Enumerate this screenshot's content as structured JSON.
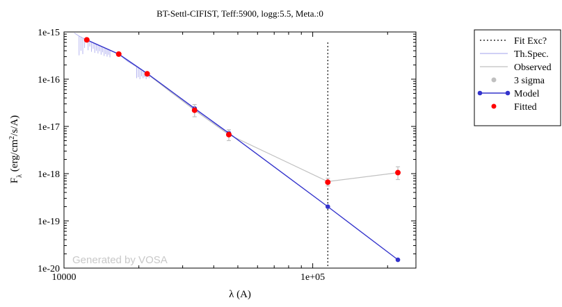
{
  "chart_data": {
    "type": "line",
    "title": "BT-Settl-CIFIST, Teff:5900, logg:5.5, Meta.:0",
    "xlabel": "λ (A)",
    "ylabel": "F_λ (erg/cm^2/s/A)",
    "xscale": "log",
    "yscale": "log",
    "xlim": [
      10000,
      260000
    ],
    "ylim": [
      1e-20,
      1e-15
    ],
    "x_tick_labels": [
      "10000",
      "1e+05"
    ],
    "y_tick_labels": [
      "1e-15",
      "1e-16",
      "1e-17",
      "1e-18",
      "1e-19",
      "1e-20"
    ],
    "watermark": "Generated by VOSA",
    "fit_exclusion_x": 115000,
    "series": [
      {
        "name": "Model",
        "color": "#3333cc",
        "points": [
          [
            12350,
            6.8e-16
          ],
          [
            16600,
            3.4e-16
          ],
          [
            21600,
            1.32e-16
          ],
          [
            33500,
            2.4e-17
          ],
          [
            46000,
            7.2e-18
          ],
          [
            115000,
            2e-19
          ],
          [
            220000,
            1.5e-20
          ]
        ]
      },
      {
        "name": "Observed",
        "color": "#c0c0c0",
        "points": [
          [
            12350,
            6.8e-16
          ],
          [
            16600,
            3.4e-16
          ],
          [
            21600,
            1.3e-16
          ],
          [
            33500,
            2.2e-17
          ],
          [
            46000,
            6.7e-18
          ],
          [
            115000,
            6.8e-19
          ],
          [
            220000,
            1.05e-18
          ]
        ]
      },
      {
        "name": "Fitted",
        "color": "#ff0000",
        "points": [
          [
            12350,
            6.8e-16
          ],
          [
            16600,
            3.4e-16
          ],
          [
            21600,
            1.3e-16
          ],
          [
            33500,
            2.2e-17
          ],
          [
            46000,
            6.7e-18
          ],
          [
            115000,
            6.6e-19
          ],
          [
            220000,
            1.05e-18
          ]
        ],
        "error_low": [
          6.3e-16,
          3.15e-16,
          1.2e-16,
          1.6e-17,
          5e-18,
          5.5e-19,
          7.5e-19
        ],
        "error_high": [
          7.3e-16,
          3.65e-16,
          1.4e-16,
          2.9e-17,
          8.5e-18,
          8e-19,
          1.4e-18
        ]
      },
      {
        "name": "Th.Spec.",
        "color": "#b4b4f0",
        "points": [
          [
            11000,
            9.5e-16
          ],
          [
            11500,
            8.2e-16
          ],
          [
            12350,
            6.8e-16
          ],
          [
            13500,
            5.4e-16
          ],
          [
            15000,
            4.3e-16
          ],
          [
            16600,
            3.4e-16
          ],
          [
            18000,
            2.4e-16
          ],
          [
            19500,
            1.85e-16
          ],
          [
            21600,
            1.3e-16
          ],
          [
            24000,
            8.5e-17
          ],
          [
            27000,
            5.2e-17
          ],
          [
            30000,
            3.5e-17
          ],
          [
            33500,
            2.3e-17
          ],
          [
            38000,
            1.4e-17
          ],
          [
            42000,
            9.8e-18
          ],
          [
            46000,
            7.2e-18
          ]
        ],
        "dips": [
          [
            11500,
            3.2e-16
          ],
          [
            11700,
            4e-16
          ],
          [
            11900,
            3.4e-16
          ],
          [
            12100,
            4.6e-16
          ],
          [
            12500,
            4.1e-16
          ],
          [
            12700,
            4.9e-16
          ],
          [
            12900,
            3.8e-16
          ],
          [
            13100,
            4.4e-16
          ],
          [
            13300,
            3.6e-16
          ],
          [
            13500,
            4e-16
          ],
          [
            13700,
            3.5e-16
          ],
          [
            13900,
            3.9e-16
          ],
          [
            14100,
            3.3e-16
          ],
          [
            14300,
            3.7e-16
          ],
          [
            14500,
            3.1e-16
          ],
          [
            14700,
            3.4e-16
          ],
          [
            14900,
            3e-16
          ],
          [
            15100,
            3.3e-16
          ],
          [
            15300,
            2.9e-16
          ],
          [
            19600,
            1.05e-16
          ],
          [
            19900,
            1.1e-16
          ],
          [
            20200,
            1e-16
          ],
          [
            20500,
            1.15e-16
          ],
          [
            20800,
            1.05e-16
          ],
          [
            21100,
            1.1e-16
          ],
          [
            21400,
            1e-16
          ],
          [
            21700,
            1.1e-16
          ],
          [
            22000,
            1.05e-16
          ]
        ]
      }
    ],
    "legend": {
      "position": "right",
      "entries": [
        {
          "label": "Fit Exc?",
          "style": "dotted",
          "color": "#000000"
        },
        {
          "label": "Th.Spec.",
          "style": "line",
          "color": "#b4b4f0"
        },
        {
          "label": "Observed",
          "style": "line",
          "color": "#c0c0c0"
        },
        {
          "label": "3 sigma",
          "style": "dot",
          "color": "#c0c0c0"
        },
        {
          "label": "Model",
          "style": "line-dot",
          "color": "#3333cc"
        },
        {
          "label": "Fitted",
          "style": "dot",
          "color": "#ff0000"
        }
      ]
    }
  }
}
